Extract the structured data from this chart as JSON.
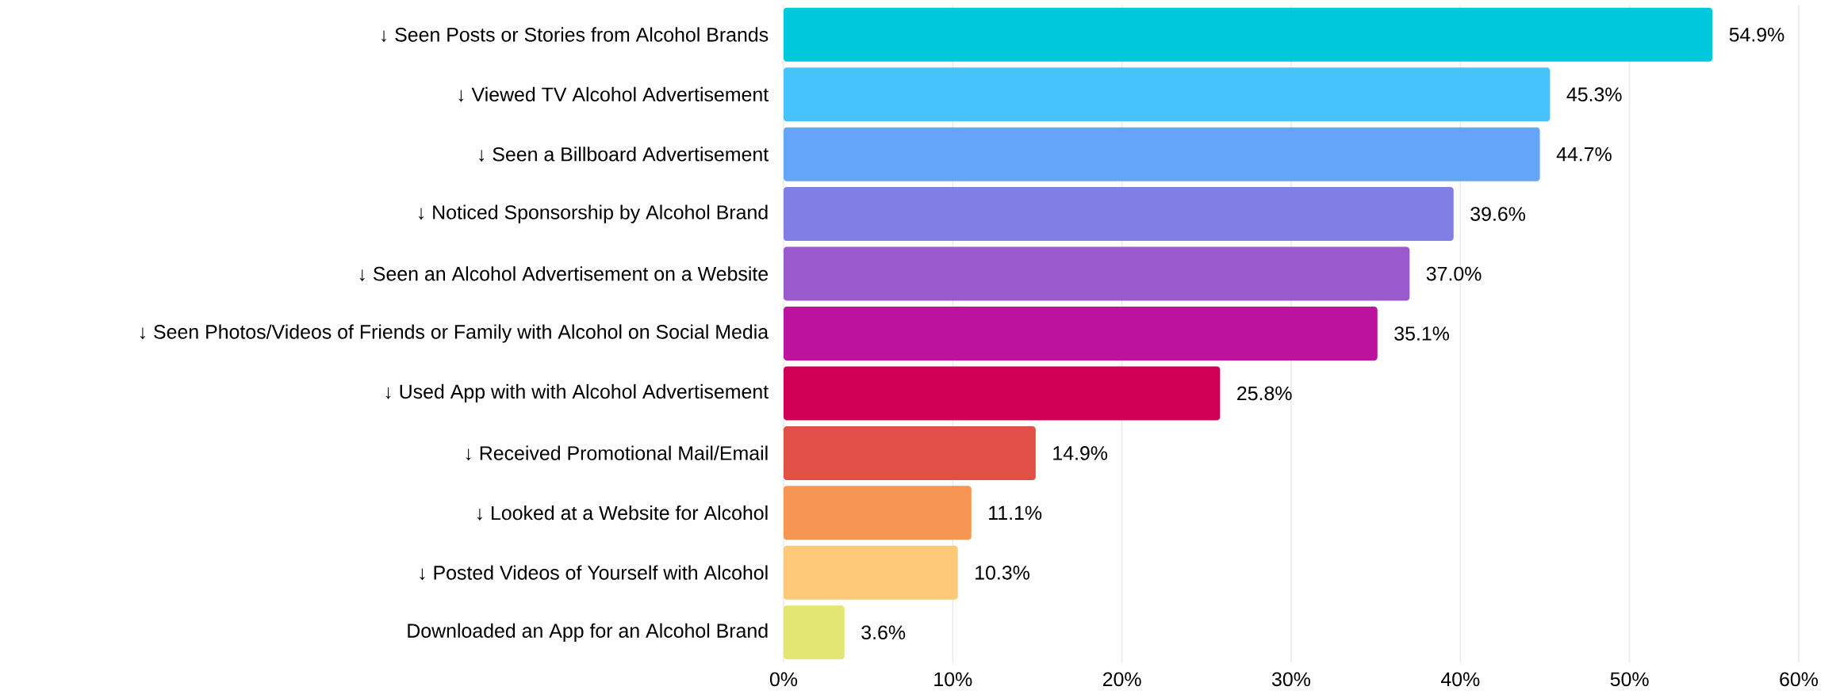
{
  "chart_data": {
    "type": "bar",
    "orientation": "horizontal",
    "categories": [
      "↓ Seen Posts or Stories from Alcohol Brands",
      "↓ Viewed TV Alcohol Advertisement",
      "↓ Seen a Billboard Advertisement",
      "↓ Noticed Sponsorship by Alcohol Brand",
      "↓ Seen an Alcohol Advertisement on a Website",
      "↓ Seen Photos/Videos of Friends or Family with Alcohol on Social Media",
      "↓ Used App with with Alcohol Advertisement",
      "↓ Received Promotional Mail/Email",
      "↓ Looked at a Website for Alcohol",
      "↓ Posted Videos of Yourself with Alcohol",
      "Downloaded an App for an Alcohol Brand"
    ],
    "values": [
      54.9,
      45.3,
      44.7,
      39.6,
      37.0,
      35.1,
      25.8,
      14.9,
      11.1,
      10.3,
      3.6
    ],
    "value_labels": [
      "54.9%",
      "45.3%",
      "44.7%",
      "39.6%",
      "37.0%",
      "35.1%",
      "25.8%",
      "14.9%",
      "11.1%",
      "10.3%",
      "3.6%"
    ],
    "colors": [
      "#00c8dc",
      "#47c3fc",
      "#65a5f8",
      "#7f7fe6",
      "#9a59cc",
      "#bb139e",
      "#d10057",
      "#e05047",
      "#f79552",
      "#fec978",
      "#e4e673"
    ],
    "xlim": [
      0,
      60
    ],
    "xticks": [
      {
        "value": 0,
        "label": "0%"
      },
      {
        "value": 10,
        "label": "10%"
      },
      {
        "value": 20,
        "label": "20%"
      },
      {
        "value": 30,
        "label": "30%"
      },
      {
        "value": 40,
        "label": "40%"
      },
      {
        "value": 50,
        "label": "50%"
      },
      {
        "value": 60,
        "label": "60%"
      }
    ],
    "grid": "x"
  }
}
